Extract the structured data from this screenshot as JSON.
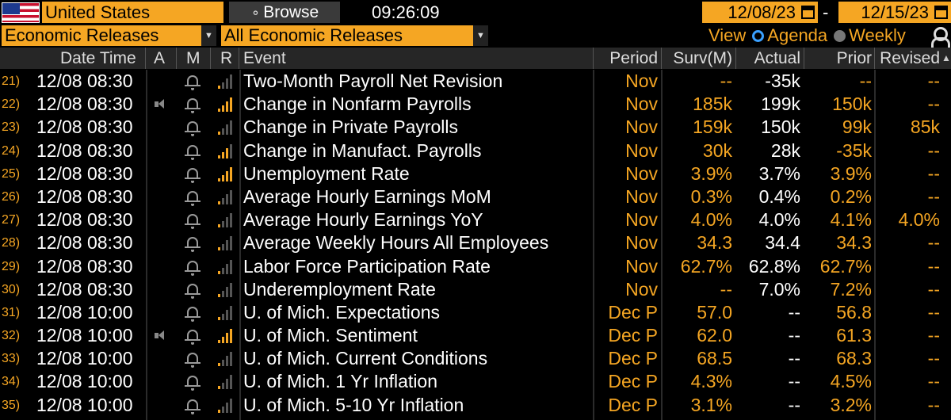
{
  "top_bar": {
    "country": "United States",
    "browse_label": "Browse",
    "time": "09:26:09",
    "start_date": "12/08/23",
    "date_separator": "-",
    "end_date": "12/15/23"
  },
  "filters": {
    "category": "Economic Releases",
    "subcategory": "All Economic Releases",
    "view_label": "View",
    "view_options": [
      "Agenda",
      "Weekly"
    ],
    "selected_view": "Agenda"
  },
  "columns": {
    "date_time": "Date Time",
    "a": "A",
    "m": "M",
    "r": "R",
    "event": "Event",
    "period": "Period",
    "survey": "Surv(M)",
    "actual": "Actual",
    "prior": "Prior",
    "revised": "Revised"
  },
  "rows": [
    {
      "num": "21)",
      "date_time": "12/08 08:30",
      "alert": false,
      "relevance": 1,
      "event": "Two-Month Payroll Net Revision",
      "period": "Nov",
      "survey": "--",
      "actual": "-35k",
      "prior": "--",
      "revised": "--"
    },
    {
      "num": "22)",
      "date_time": "12/08 08:30",
      "alert": true,
      "relevance": 4,
      "event": "Change in Nonfarm Payrolls",
      "period": "Nov",
      "survey": "185k",
      "actual": "199k",
      "prior": "150k",
      "revised": "--"
    },
    {
      "num": "23)",
      "date_time": "12/08 08:30",
      "alert": false,
      "relevance": 1,
      "event": "Change in Private Payrolls",
      "period": "Nov",
      "survey": "159k",
      "actual": "150k",
      "prior": "99k",
      "revised": "85k"
    },
    {
      "num": "24)",
      "date_time": "12/08 08:30",
      "alert": false,
      "relevance": 3,
      "event": "Change in Manufact. Payrolls",
      "period": "Nov",
      "survey": "30k",
      "actual": "28k",
      "prior": "-35k",
      "revised": "--"
    },
    {
      "num": "25)",
      "date_time": "12/08 08:30",
      "alert": false,
      "relevance": 4,
      "event": "Unemployment Rate",
      "period": "Nov",
      "survey": "3.9%",
      "actual": "3.7%",
      "prior": "3.9%",
      "revised": "--"
    },
    {
      "num": "26)",
      "date_time": "12/08 08:30",
      "alert": false,
      "relevance": 1,
      "event": "Average Hourly Earnings MoM",
      "period": "Nov",
      "survey": "0.3%",
      "actual": "0.4%",
      "prior": "0.2%",
      "revised": "--"
    },
    {
      "num": "27)",
      "date_time": "12/08 08:30",
      "alert": false,
      "relevance": 1,
      "event": "Average Hourly Earnings YoY",
      "period": "Nov",
      "survey": "4.0%",
      "actual": "4.0%",
      "prior": "4.1%",
      "revised": "4.0%"
    },
    {
      "num": "28)",
      "date_time": "12/08 08:30",
      "alert": false,
      "relevance": 1,
      "event": "Average Weekly Hours All Employees",
      "period": "Nov",
      "survey": "34.3",
      "actual": "34.4",
      "prior": "34.3",
      "revised": "--"
    },
    {
      "num": "29)",
      "date_time": "12/08 08:30",
      "alert": false,
      "relevance": 1,
      "event": "Labor Force Participation Rate",
      "period": "Nov",
      "survey": "62.7%",
      "actual": "62.8%",
      "prior": "62.7%",
      "revised": "--"
    },
    {
      "num": "30)",
      "date_time": "12/08 08:30",
      "alert": false,
      "relevance": 1,
      "event": "Underemployment Rate",
      "period": "Nov",
      "survey": "--",
      "actual": "7.0%",
      "prior": "7.2%",
      "revised": "--"
    },
    {
      "num": "31)",
      "date_time": "12/08 10:00",
      "alert": false,
      "relevance": 1,
      "event": "U. of Mich. Expectations",
      "period": "Dec P",
      "survey": "57.0",
      "actual": "--",
      "prior": "56.8",
      "revised": "--"
    },
    {
      "num": "32)",
      "date_time": "12/08 10:00",
      "alert": true,
      "relevance": 4,
      "event": "U. of Mich. Sentiment",
      "period": "Dec P",
      "survey": "62.0",
      "actual": "--",
      "prior": "61.3",
      "revised": "--"
    },
    {
      "num": "33)",
      "date_time": "12/08 10:00",
      "alert": false,
      "relevance": 1,
      "event": "U. of Mich. Current Conditions",
      "period": "Dec P",
      "survey": "68.5",
      "actual": "--",
      "prior": "68.3",
      "revised": "--"
    },
    {
      "num": "34)",
      "date_time": "12/08 10:00",
      "alert": false,
      "relevance": 1,
      "event": "U. of Mich. 1 Yr Inflation",
      "period": "Dec P",
      "survey": "4.3%",
      "actual": "--",
      "prior": "4.5%",
      "revised": "--"
    },
    {
      "num": "35)",
      "date_time": "12/08 10:00",
      "alert": false,
      "relevance": 1,
      "event": "U. of Mich. 5-10 Yr Inflation",
      "period": "Dec P",
      "survey": "3.1%",
      "actual": "--",
      "prior": "3.2%",
      "revised": "--"
    }
  ],
  "colors": {
    "accent": "#f5a623",
    "background": "#000000",
    "header": "#262626",
    "radio": "#3aa0ff"
  }
}
